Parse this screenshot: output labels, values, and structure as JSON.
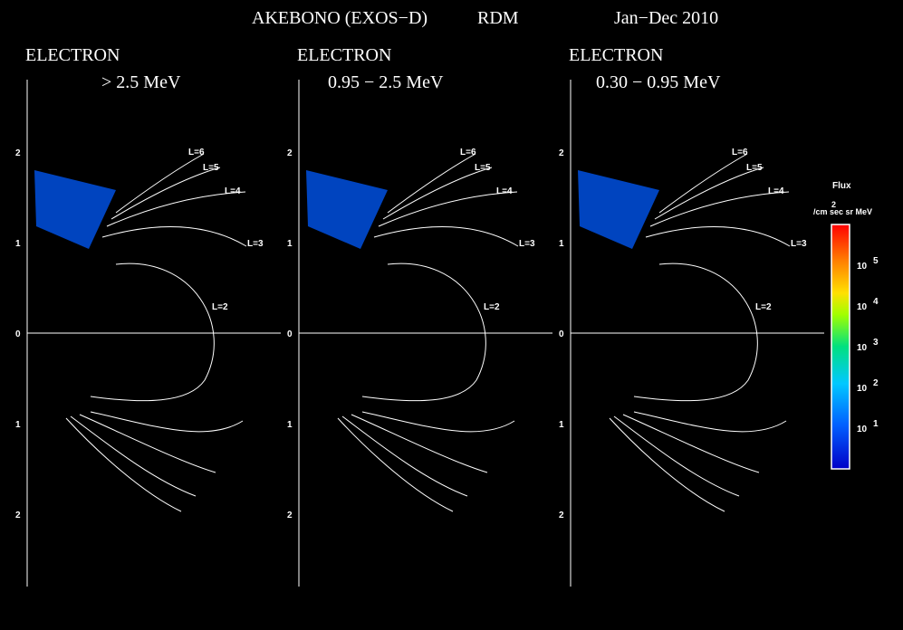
{
  "header": {
    "mission": "AKEBONO (EXOS−D)",
    "instrument": "RDM",
    "period": "Jan−Dec 2010"
  },
  "chart_data": [
    {
      "type": "heatmap",
      "species": "ELECTRON",
      "energy": "> 2.5 MeV",
      "y_tick_labels": [
        "2",
        "1",
        "0",
        "1",
        "2"
      ],
      "l_shell_labels": [
        "L=6",
        "L=5",
        "L=4",
        "L=3",
        "L=2"
      ],
      "grid": false
    },
    {
      "type": "heatmap",
      "species": "ELECTRON",
      "energy": "0.95 − 2.5 MeV",
      "y_tick_labels": [
        "2",
        "1",
        "0",
        "1",
        "2"
      ],
      "l_shell_labels": [
        "L=6",
        "L=5",
        "L=4",
        "L=3",
        "L=2"
      ],
      "grid": false
    },
    {
      "type": "heatmap",
      "species": "ELECTRON",
      "energy": "0.30 − 0.95 MeV",
      "y_tick_labels": [
        "2",
        "1",
        "0",
        "1",
        "2"
      ],
      "l_shell_labels": [
        "L=6",
        "L=5",
        "L=4",
        "L=3",
        "L=2"
      ],
      "grid": false
    }
  ],
  "colorbar": {
    "title": "Flux",
    "units_base": "/cm sec sr MeV",
    "units_sup": "2",
    "scale": "log",
    "ticks": [
      {
        "base": "10",
        "exp": "5"
      },
      {
        "base": "10",
        "exp": "4"
      },
      {
        "base": "10",
        "exp": "3"
      },
      {
        "base": "10",
        "exp": "2"
      },
      {
        "base": "10",
        "exp": "1"
      }
    ],
    "log_range": [
      0,
      6
    ],
    "colors": [
      "#0000c8",
      "#0080ff",
      "#00e0e0",
      "#30e060",
      "#d0ff00",
      "#ff9000",
      "#ff0000"
    ]
  }
}
